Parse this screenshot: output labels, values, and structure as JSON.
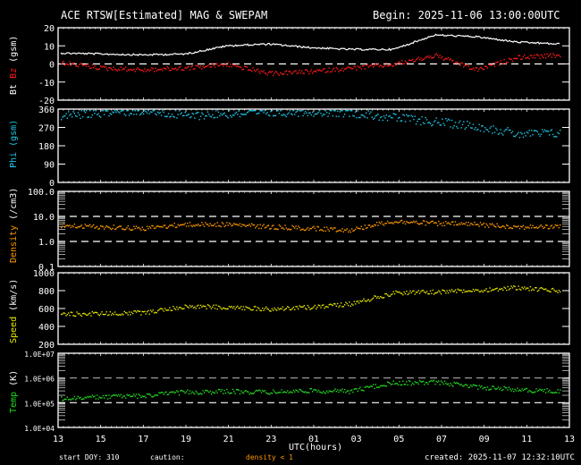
{
  "header": {
    "title": "ACE RTSW[Estimated] MAG & SWEPAM",
    "begin": "Begin: 2025-11-06 13:00:00UTC"
  },
  "footer": {
    "start_doy": "start DOY: 310",
    "caution_label": "caution:",
    "caution_text": "density < 1",
    "xlabel": "UTC(hours)",
    "created": "created: 2025-11-07 12:32:10UTC"
  },
  "colors": {
    "background": "#000000",
    "bt": "#ffffff",
    "bz": "#ff1a1a",
    "phi": "#1ec8e6",
    "density": "#ff9900",
    "speed": "#e6e600",
    "temp": "#22dd22",
    "axis": "#ffffff"
  },
  "chart_data": [
    {
      "type": "line",
      "title": "Bt / Bz",
      "ylabel": "Bt Bz (gsm)",
      "yticks": [
        "20",
        "10",
        "0",
        "-10",
        "-20"
      ],
      "ylim": [
        -20,
        20
      ],
      "reference_lines": [
        0
      ],
      "x": [
        "13",
        "15",
        "17",
        "19",
        "21",
        "23",
        "01",
        "03",
        "05",
        "07",
        "09",
        "11",
        "13"
      ],
      "series": [
        {
          "name": "Bt",
          "color": "#ffffff",
          "values": [
            6,
            5.5,
            5,
            5.5,
            10,
            11,
            9,
            8,
            8,
            16,
            15,
            12,
            11
          ]
        },
        {
          "name": "Bz",
          "color": "#ff1a1a",
          "values": [
            1,
            -2,
            -3,
            -2,
            0,
            -5,
            -4,
            -2,
            0,
            5,
            -3,
            4,
            5
          ]
        }
      ]
    },
    {
      "type": "scatter",
      "title": "Phi",
      "ylabel": "Phi (gsm)",
      "yticks": [
        "360",
        "270",
        "180",
        "90",
        "0"
      ],
      "ylim": [
        0,
        360
      ],
      "x": [
        "13",
        "15",
        "17",
        "19",
        "21",
        "23",
        "01",
        "03",
        "05",
        "07",
        "09",
        "11",
        "13"
      ],
      "series": [
        {
          "name": "Phi",
          "color": "#1ec8e6",
          "values": [
            330,
            345,
            355,
            330,
            340,
            345,
            350,
            345,
            320,
            300,
            280,
            240,
            245
          ]
        }
      ]
    },
    {
      "type": "scatter",
      "title": "Density",
      "ylabel": "Density (/cm3)",
      "yticks": [
        "100.0",
        "10.0",
        "1.0",
        "0.1"
      ],
      "yscale": "log",
      "ylim": [
        0.1,
        100
      ],
      "reference_lines": [
        10,
        1
      ],
      "x": [
        "13",
        "15",
        "17",
        "19",
        "21",
        "23",
        "01",
        "03",
        "05",
        "07",
        "09",
        "11",
        "13"
      ],
      "series": [
        {
          "name": "Density",
          "color": "#ff9900",
          "values": [
            4.5,
            4.0,
            3.5,
            5.0,
            5.0,
            4.0,
            3.5,
            3.0,
            6.5,
            5.5,
            5.0,
            4.0,
            4.0
          ]
        }
      ]
    },
    {
      "type": "scatter",
      "title": "Speed",
      "ylabel": "Speed (km/s)",
      "yticks": [
        "1000",
        "800",
        "600",
        "400",
        "200"
      ],
      "ylim": [
        200,
        1000
      ],
      "x": [
        "13",
        "15",
        "17",
        "19",
        "21",
        "23",
        "01",
        "03",
        "05",
        "07",
        "09",
        "11",
        "13"
      ],
      "series": [
        {
          "name": "Speed",
          "color": "#e6e600",
          "values": [
            540,
            550,
            560,
            630,
            620,
            600,
            620,
            660,
            780,
            790,
            810,
            840,
            800
          ]
        }
      ]
    },
    {
      "type": "scatter",
      "title": "Temp",
      "ylabel": "Temp (K)",
      "yticks": [
        "1.0E+07",
        "1.0E+06",
        "1.0E+05",
        "1.0E+04"
      ],
      "yscale": "log",
      "ylim": [
        10000,
        10000000
      ],
      "reference_lines": [
        1000000,
        100000
      ],
      "x": [
        "13",
        "15",
        "17",
        "19",
        "21",
        "23",
        "01",
        "03",
        "05",
        "07",
        "09",
        "11",
        "13"
      ],
      "series": [
        {
          "name": "Temp",
          "color": "#22dd22",
          "values": [
            150000,
            180000,
            200000,
            280000,
            300000,
            280000,
            320000,
            300000,
            650000,
            700000,
            450000,
            350000,
            300000
          ]
        }
      ]
    }
  ],
  "xaxis": {
    "label": "UTC(hours)",
    "ticks": [
      "13",
      "15",
      "17",
      "19",
      "21",
      "23",
      "01",
      "03",
      "05",
      "07",
      "09",
      "11",
      "13"
    ]
  }
}
